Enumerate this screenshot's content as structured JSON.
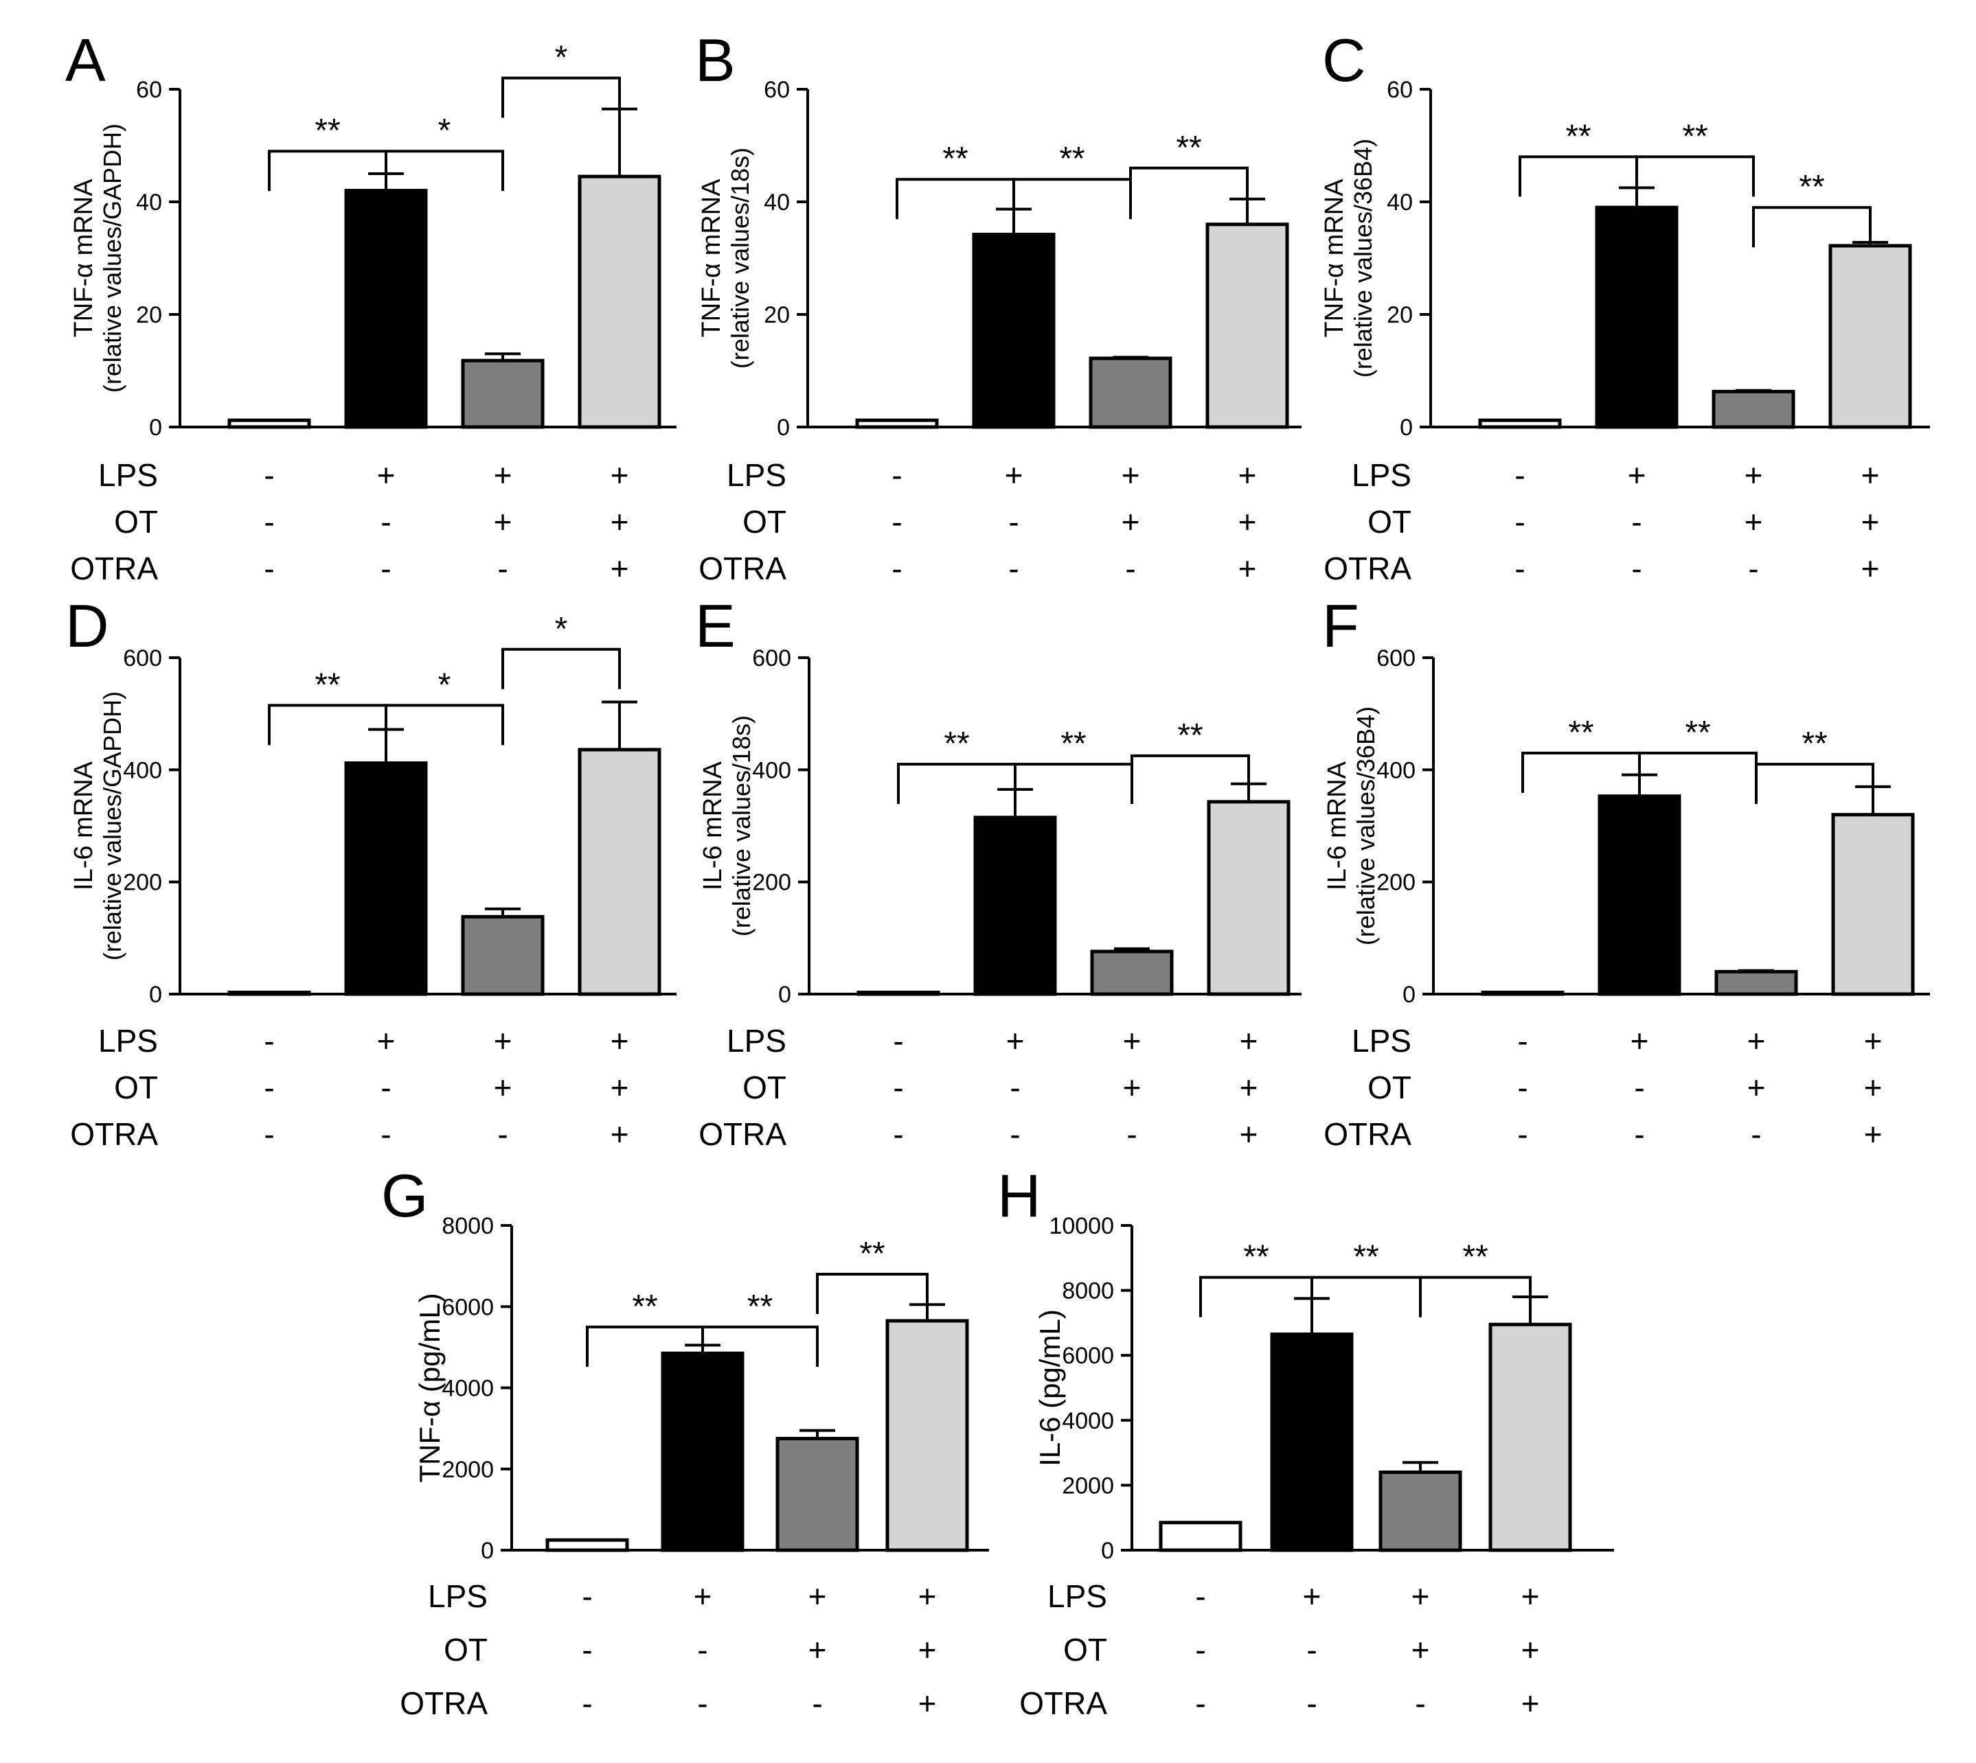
{
  "figure": {
    "colors": {
      "ctrl": "#ffffff",
      "lps": "#000000",
      "lps_ot": "#7f7f7f",
      "lps_ot_otra": "#d4d4d4"
    },
    "treatment_labels": [
      "LPS",
      "OT",
      "OTRA"
    ]
  },
  "chart_data": [
    {
      "panel": "A",
      "type": "bar",
      "ylabel_line1": "TNF-α mRNA",
      "ylabel_line2": "(relative values/GAPDH)",
      "ylim": [
        0,
        60
      ],
      "ticks": [
        0,
        20,
        40,
        60
      ],
      "values": [
        1.2,
        42,
        11.8,
        44.5
      ],
      "errors": [
        0,
        3,
        1.2,
        12
      ],
      "treatments": {
        "LPS": [
          "-",
          "+",
          "+",
          "+"
        ],
        "OT": [
          "-",
          "-",
          "+",
          "+"
        ],
        "OTRA": [
          "-",
          "-",
          "-",
          "+"
        ]
      },
      "comparisons": [
        {
          "from": 0,
          "to": 1,
          "y": 49,
          "label": "**"
        },
        {
          "from": 1,
          "to": 2,
          "y": 49,
          "label": "*"
        },
        {
          "from": 2,
          "to": 3,
          "y": 62,
          "label": "*"
        }
      ]
    },
    {
      "panel": "B",
      "type": "bar",
      "ylabel_line1": "TNF-α mRNA",
      "ylabel_line2": "(relative values/18s)",
      "ylim": [
        0,
        60
      ],
      "ticks": [
        0,
        20,
        40,
        60
      ],
      "values": [
        1.2,
        34.2,
        12.2,
        36
      ],
      "errors": [
        0,
        4.5,
        0.2,
        4.5
      ],
      "treatments": {
        "LPS": [
          "-",
          "+",
          "+",
          "+"
        ],
        "OT": [
          "-",
          "-",
          "+",
          "+"
        ],
        "OTRA": [
          "-",
          "-",
          "-",
          "+"
        ]
      },
      "comparisons": [
        {
          "from": 0,
          "to": 1,
          "y": 44,
          "label": "**"
        },
        {
          "from": 1,
          "to": 2,
          "y": 44,
          "label": "**"
        },
        {
          "from": 2,
          "to": 3,
          "y": 46,
          "label": "**"
        }
      ]
    },
    {
      "panel": "C",
      "type": "bar",
      "ylabel_line1": "TNF-α mRNA",
      "ylabel_line2": "(relative values/36B4)",
      "ylim": [
        0,
        60
      ],
      "ticks": [
        0,
        20,
        40,
        60
      ],
      "values": [
        1.2,
        39,
        6.3,
        32.2
      ],
      "errors": [
        0,
        3.5,
        0.2,
        0.6
      ],
      "treatments": {
        "LPS": [
          "-",
          "+",
          "+",
          "+"
        ],
        "OT": [
          "-",
          "-",
          "+",
          "+"
        ],
        "OTRA": [
          "-",
          "-",
          "-",
          "+"
        ]
      },
      "comparisons": [
        {
          "from": 0,
          "to": 1,
          "y": 48,
          "label": "**"
        },
        {
          "from": 1,
          "to": 2,
          "y": 48,
          "label": "**"
        },
        {
          "from": 2,
          "to": 3,
          "y": 39,
          "label": "**"
        }
      ]
    },
    {
      "panel": "D",
      "type": "bar",
      "ylabel_line1": "IL-6 mRNA",
      "ylabel_line2": "(relative values/GAPDH)",
      "ylim": [
        0,
        600
      ],
      "ticks": [
        0,
        200,
        400,
        600
      ],
      "values": [
        3,
        412,
        138,
        436
      ],
      "errors": [
        0,
        60,
        14,
        85
      ],
      "treatments": {
        "LPS": [
          "-",
          "+",
          "+",
          "+"
        ],
        "OT": [
          "-",
          "-",
          "+",
          "+"
        ],
        "OTRA": [
          "-",
          "-",
          "-",
          "+"
        ]
      },
      "comparisons": [
        {
          "from": 0,
          "to": 1,
          "y": 515,
          "label": "**"
        },
        {
          "from": 1,
          "to": 2,
          "y": 515,
          "label": "*"
        },
        {
          "from": 2,
          "to": 3,
          "y": 615,
          "label": "*"
        }
      ]
    },
    {
      "panel": "E",
      "type": "bar",
      "ylabel_line1": "IL-6 mRNA",
      "ylabel_line2": "(relative values/18s)",
      "ylim": [
        0,
        600
      ],
      "ticks": [
        0,
        200,
        400,
        600
      ],
      "values": [
        3,
        315,
        76,
        343
      ],
      "errors": [
        0,
        50,
        5,
        32
      ],
      "treatments": {
        "LPS": [
          "-",
          "+",
          "+",
          "+"
        ],
        "OT": [
          "-",
          "-",
          "+",
          "+"
        ],
        "OTRA": [
          "-",
          "-",
          "-",
          "+"
        ]
      },
      "comparisons": [
        {
          "from": 0,
          "to": 1,
          "y": 410,
          "label": "**"
        },
        {
          "from": 1,
          "to": 2,
          "y": 410,
          "label": "**"
        },
        {
          "from": 2,
          "to": 3,
          "y": 425,
          "label": "**"
        }
      ]
    },
    {
      "panel": "F",
      "type": "bar",
      "ylabel_line1": "IL-6 mRNA",
      "ylabel_line2": "(relative values/36B4)",
      "ylim": [
        0,
        600
      ],
      "ticks": [
        0,
        200,
        400,
        600
      ],
      "values": [
        3,
        353,
        40,
        320
      ],
      "errors": [
        0,
        38,
        2,
        50
      ],
      "treatments": {
        "LPS": [
          "-",
          "+",
          "+",
          "+"
        ],
        "OT": [
          "-",
          "-",
          "+",
          "+"
        ],
        "OTRA": [
          "-",
          "-",
          "-",
          "+"
        ]
      },
      "comparisons": [
        {
          "from": 0,
          "to": 1,
          "y": 430,
          "label": "**"
        },
        {
          "from": 1,
          "to": 2,
          "y": 430,
          "label": "**"
        },
        {
          "from": 2,
          "to": 3,
          "y": 410,
          "label": "**"
        }
      ]
    },
    {
      "panel": "G",
      "type": "bar",
      "ylabel_line1": "TNF-α (pg/mL)",
      "ylabel_line2": "",
      "ylim": [
        0,
        8000
      ],
      "ticks": [
        0,
        2000,
        4000,
        6000,
        8000
      ],
      "values": [
        250,
        4850,
        2750,
        5650
      ],
      "errors": [
        0,
        200,
        200,
        400
      ],
      "treatments": {
        "LPS": [
          "-",
          "+",
          "+",
          "+"
        ],
        "OT": [
          "-",
          "-",
          "+",
          "+"
        ],
        "OTRA": [
          "-",
          "-",
          "-",
          "+"
        ]
      },
      "comparisons": [
        {
          "from": 0,
          "to": 1,
          "y": 5500,
          "label": "**"
        },
        {
          "from": 1,
          "to": 2,
          "y": 5500,
          "label": "**"
        },
        {
          "from": 2,
          "to": 3,
          "y": 6800,
          "label": "**"
        }
      ]
    },
    {
      "panel": "H",
      "type": "bar",
      "ylabel_line1": "IL-6 (pg/mL)",
      "ylabel_line2": "",
      "ylim": [
        0,
        10000
      ],
      "ticks": [
        0,
        2000,
        4000,
        6000,
        8000,
        10000
      ],
      "values": [
        850,
        6650,
        2400,
        6950
      ],
      "errors": [
        0,
        1100,
        300,
        850
      ],
      "treatments": {
        "LPS": [
          "-",
          "+",
          "+",
          "+"
        ],
        "OT": [
          "-",
          "-",
          "+",
          "+"
        ],
        "OTRA": [
          "-",
          "-",
          "-",
          "+"
        ]
      },
      "comparisons": [
        {
          "from": 0,
          "to": 1,
          "y": 8400,
          "label": "**"
        },
        {
          "from": 1,
          "to": 2,
          "y": 8400,
          "label": "**"
        },
        {
          "from": 2,
          "to": 3,
          "y": 8400,
          "label": "**"
        }
      ]
    }
  ]
}
